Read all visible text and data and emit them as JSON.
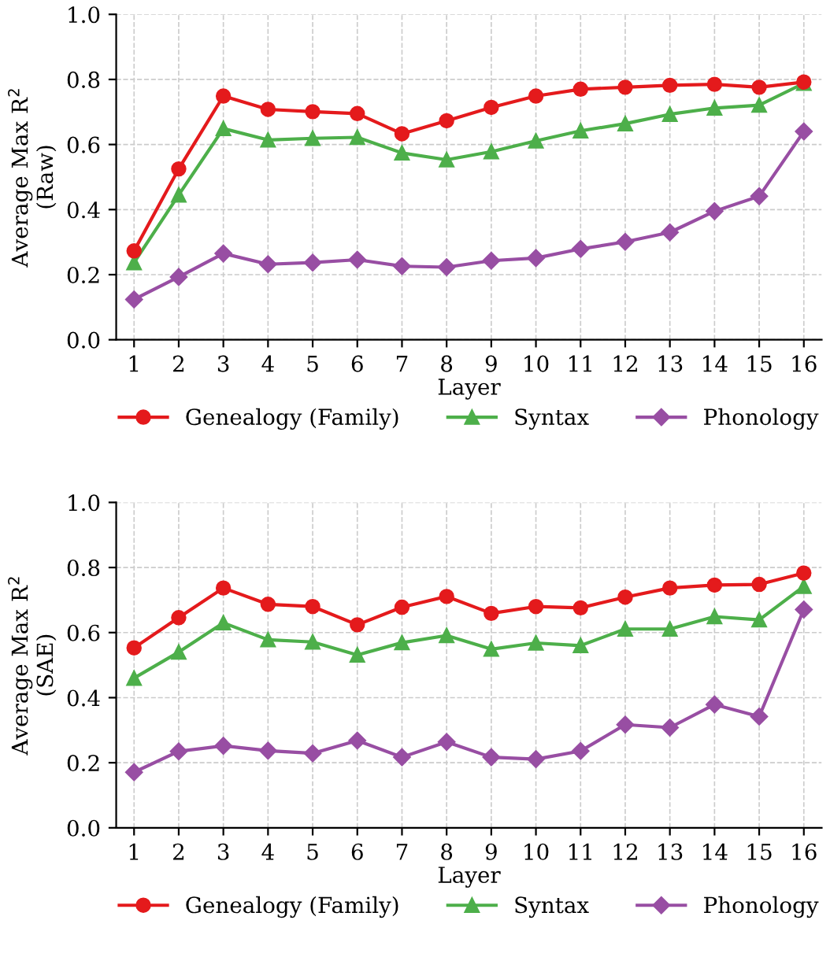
{
  "chart_data": [
    {
      "type": "line",
      "xlabel": "Layer",
      "ylabel": "Average Max R$^{2}$\n(Raw)",
      "x": [
        1,
        2,
        3,
        4,
        5,
        6,
        7,
        8,
        9,
        10,
        11,
        12,
        13,
        14,
        15,
        16
      ],
      "xlim": [
        0.6,
        16.4
      ],
      "xticks": [
        1,
        2,
        3,
        4,
        5,
        6,
        7,
        8,
        9,
        10,
        11,
        12,
        13,
        14,
        15,
        16
      ],
      "ylim": [
        0,
        1
      ],
      "yticks": [
        {
          "value": 0,
          "label": "0.0"
        },
        {
          "value": 0.2,
          "label": "0.2"
        },
        {
          "value": 0.4,
          "label": "0.4"
        },
        {
          "value": 0.6,
          "label": "0.6"
        },
        {
          "value": 0.8,
          "label": "0.8"
        },
        {
          "value": 1,
          "label": "1.0"
        }
      ],
      "grid": true,
      "legend": "bottom",
      "line_style": "solid",
      "series": [
        {
          "name": "Genealogy (Family)",
          "color": "#e41a1c",
          "marker": "circle",
          "values": [
            0.273,
            0.525,
            0.749,
            0.708,
            0.701,
            0.695,
            0.633,
            0.673,
            0.714,
            0.749,
            0.77,
            0.776,
            0.782,
            0.785,
            0.776,
            0.792
          ]
        },
        {
          "name": "Syntax",
          "color": "#4daf4a",
          "marker": "triangle",
          "values": [
            0.237,
            0.445,
            0.649,
            0.614,
            0.619,
            0.622,
            0.574,
            0.553,
            0.578,
            0.611,
            0.642,
            0.664,
            0.693,
            0.712,
            0.721,
            0.788
          ]
        },
        {
          "name": "Phonology",
          "color": "#984ea3",
          "marker": "diamond",
          "values": [
            0.124,
            0.193,
            0.265,
            0.232,
            0.237,
            0.246,
            0.226,
            0.223,
            0.243,
            0.251,
            0.279,
            0.301,
            0.33,
            0.395,
            0.441,
            0.64
          ]
        }
      ]
    },
    {
      "type": "line",
      "xlabel": "Layer",
      "ylabel": "Average Max R$^{2}$\n(SAE)",
      "x": [
        1,
        2,
        3,
        4,
        5,
        6,
        7,
        8,
        9,
        10,
        11,
        12,
        13,
        14,
        15,
        16
      ],
      "xlim": [
        0.6,
        16.4
      ],
      "xticks": [
        1,
        2,
        3,
        4,
        5,
        6,
        7,
        8,
        9,
        10,
        11,
        12,
        13,
        14,
        15,
        16
      ],
      "ylim": [
        0,
        1
      ],
      "yticks": [
        {
          "value": 0,
          "label": "0.0"
        },
        {
          "value": 0.2,
          "label": "0.2"
        },
        {
          "value": 0.4,
          "label": "0.4"
        },
        {
          "value": 0.6,
          "label": "0.6"
        },
        {
          "value": 0.8,
          "label": "0.8"
        },
        {
          "value": 1,
          "label": "1.0"
        }
      ],
      "grid": true,
      "legend": "bottom",
      "line_style": "solid",
      "series": [
        {
          "name": "Genealogy (Family)",
          "color": "#e41a1c",
          "marker": "circle",
          "values": [
            0.553,
            0.646,
            0.737,
            0.687,
            0.68,
            0.624,
            0.678,
            0.711,
            0.659,
            0.68,
            0.676,
            0.709,
            0.737,
            0.746,
            0.748,
            0.783
          ]
        },
        {
          "name": "Syntax",
          "color": "#4daf4a",
          "marker": "triangle",
          "values": [
            0.46,
            0.54,
            0.63,
            0.578,
            0.571,
            0.531,
            0.569,
            0.591,
            0.549,
            0.568,
            0.56,
            0.611,
            0.611,
            0.649,
            0.639,
            0.742
          ]
        },
        {
          "name": "Phonology",
          "color": "#984ea3",
          "marker": "diamond",
          "values": [
            0.171,
            0.235,
            0.252,
            0.237,
            0.229,
            0.268,
            0.217,
            0.264,
            0.217,
            0.211,
            0.236,
            0.317,
            0.308,
            0.379,
            0.342,
            0.671
          ]
        }
      ]
    }
  ]
}
